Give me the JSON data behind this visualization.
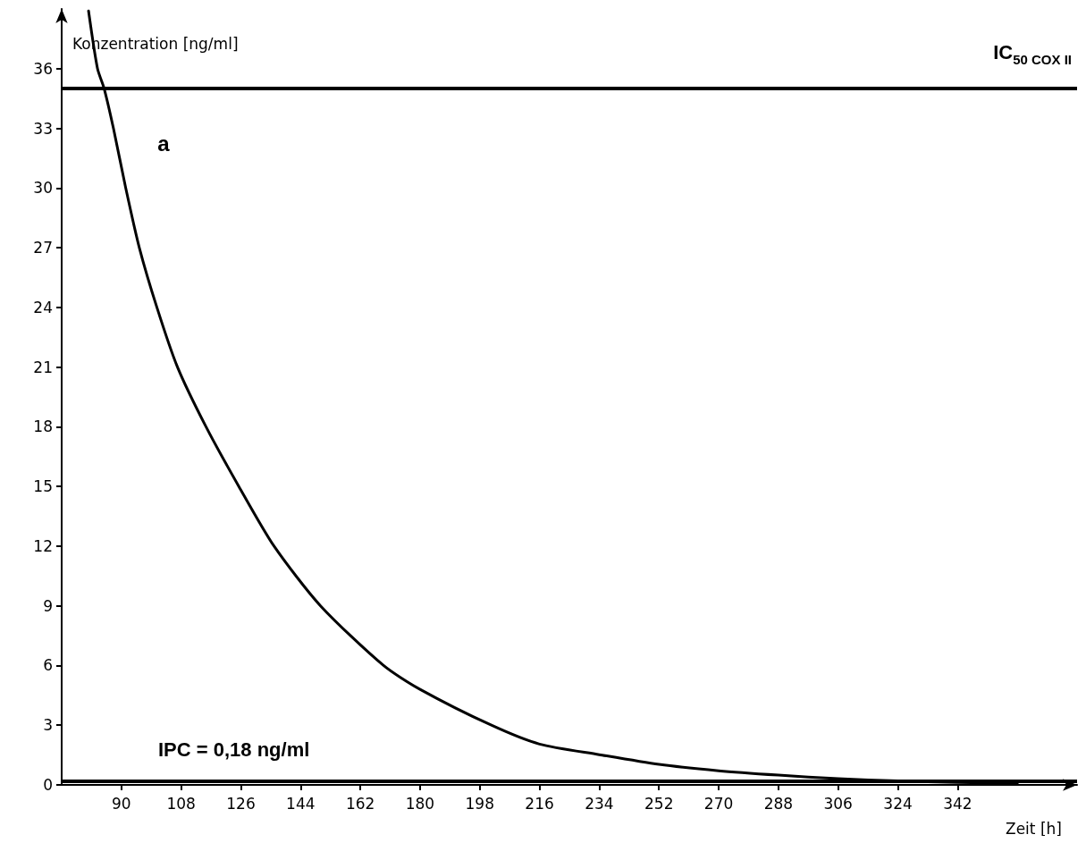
{
  "chart_data": {
    "type": "line",
    "xlabel": "Zeit [h]",
    "ylabel": "Konzentration [ng/ml]",
    "x": [
      80.1,
      82.8,
      84.8,
      87.6,
      91.3,
      95.4,
      100.7,
      106.9,
      115.5,
      125.4,
      136,
      150,
      169,
      180,
      201.5,
      216,
      234,
      252,
      270,
      288,
      306,
      324,
      342,
      360
    ],
    "series": [
      {
        "color": "#000000",
        "values": [
          38.9,
          36,
          35,
          33,
          30,
          27,
          24,
          21,
          18,
          15,
          12,
          9,
          6,
          4.8,
          3,
          2.05,
          1.52,
          1.03,
          0.71,
          0.49,
          0.31,
          0.2,
          0.12,
          0.08
        ]
      }
    ],
    "xlim": [
      72,
      378
    ],
    "ylim": [
      0,
      39
    ],
    "xticks": [
      90,
      108,
      126,
      144,
      162,
      180,
      198,
      216,
      234,
      252,
      270,
      288,
      306,
      324,
      342
    ],
    "yticks": [
      0,
      3,
      6,
      9,
      12,
      15,
      18,
      21,
      24,
      27,
      30,
      33,
      36
    ],
    "ref_lines": [
      {
        "axis": "y",
        "value": 35,
        "label": "IC$_{50 COX II}$",
        "color": "#000000"
      },
      {
        "axis": "y",
        "value": 0.18,
        "label": "IPC = 0,18 ng/ml",
        "color": "#000000"
      }
    ],
    "annotations": [
      "a"
    ],
    "marker": "none",
    "line_style": "solid"
  }
}
